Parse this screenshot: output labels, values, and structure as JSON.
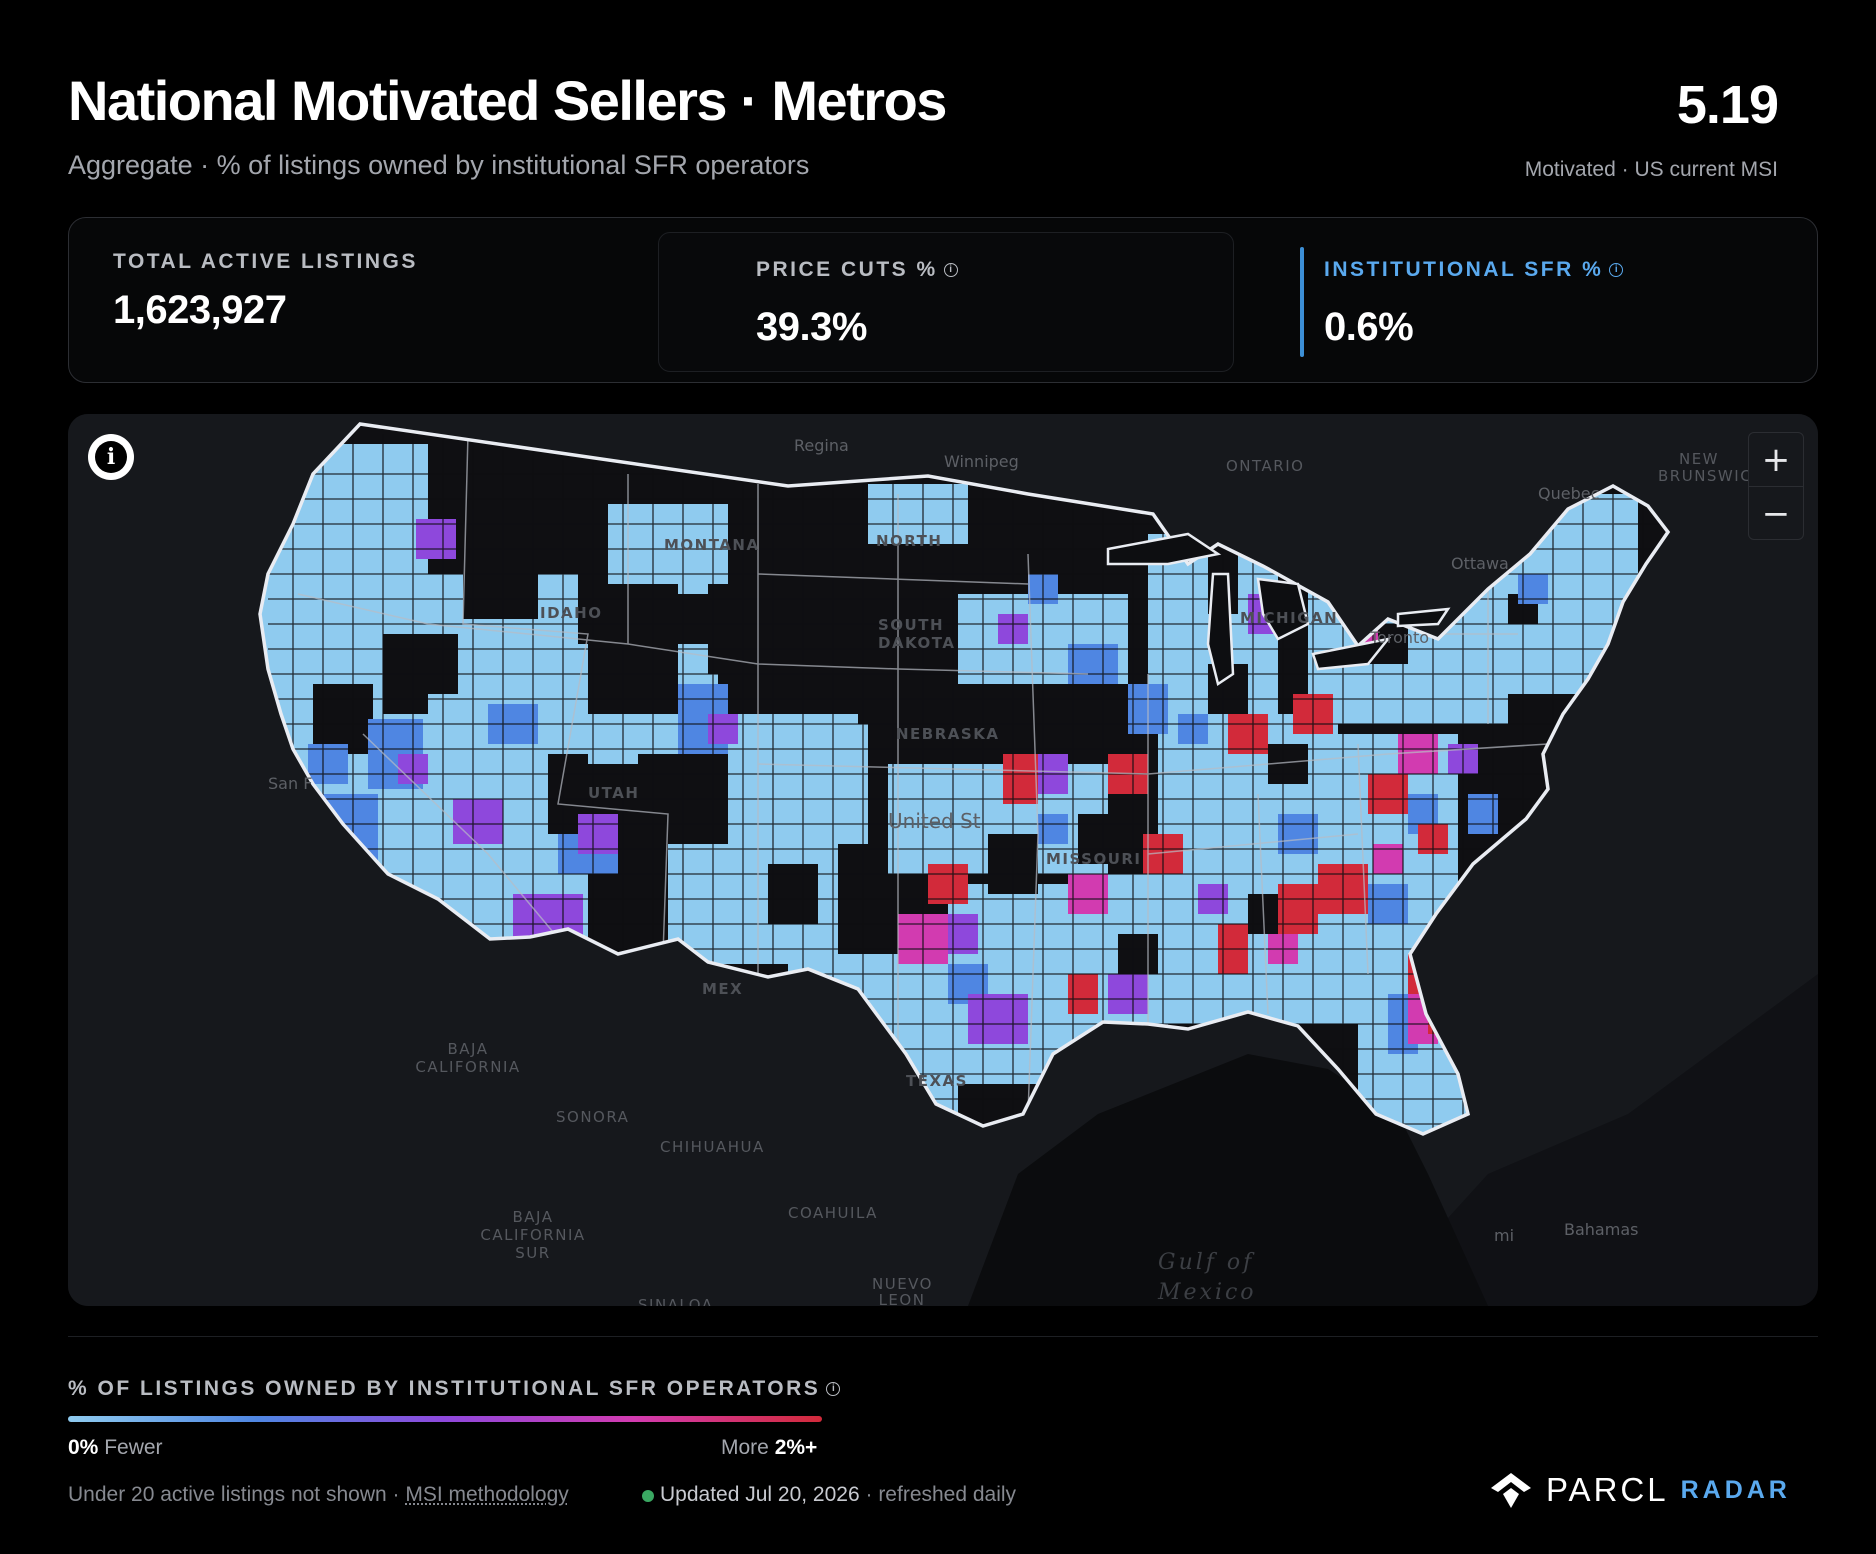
{
  "header": {
    "title": "National Motivated Sellers · Metros",
    "subtitle": "Aggregate · % of listings owned by institutional SFR operators",
    "msi_value": "5.19",
    "msi_label": "Motivated · US current MSI"
  },
  "stats": [
    {
      "label": "TOTAL ACTIVE LISTINGS",
      "value": "1,623,927"
    },
    {
      "label": "PRICE CUTS %",
      "value": "39.3%",
      "info_icon": "info-icon"
    },
    {
      "label": "INSTITUTIONAL SFR %",
      "value": "0.6%",
      "info_icon": "info-icon",
      "active": true
    }
  ],
  "map": {
    "info_icon": "info-icon",
    "zoom_in": "+",
    "zoom_out": "−",
    "regions": [
      {
        "label": "Regina"
      },
      {
        "label": "Winnipeg"
      },
      {
        "label": "ONTARIO"
      },
      {
        "label": "NEW BRUNSWICK"
      },
      {
        "label": "Quebec"
      },
      {
        "label": "Ottawa"
      },
      {
        "label": "Toronto"
      },
      {
        "label": "MONTANA"
      },
      {
        "label": "NORTH"
      },
      {
        "label": "SOUTH DAKOTA"
      },
      {
        "label": "IDAHO"
      },
      {
        "label": "NEBRASKA"
      },
      {
        "label": "UTAH"
      },
      {
        "label": "United St"
      },
      {
        "label": "MISSOURI"
      },
      {
        "label": "MICHIGAN"
      },
      {
        "label": "San F"
      },
      {
        "label": "MEX"
      },
      {
        "label": "TEXAS"
      },
      {
        "label": "BAJA CALIFORNIA"
      },
      {
        "label": "SONORA"
      },
      {
        "label": "CHIHUAHUA"
      },
      {
        "label": "BAJA CALIFORNIA SUR"
      },
      {
        "label": "COAHUILA"
      },
      {
        "label": "NUEVO LEON"
      },
      {
        "label": "SINALOA"
      },
      {
        "label": "Gulf of Mexico"
      },
      {
        "label": "Bahamas"
      },
      {
        "label": "mi"
      }
    ],
    "colors": {
      "background": "#0d0e11",
      "land": "#1a1c20",
      "us_fill": "#0f0f12",
      "border": "#e9ecf2",
      "low": "#8fcbef",
      "mid_low": "#4f86e2",
      "mid": "#8e48dc",
      "mid_high": "#d23bb0",
      "high": "#d22a3a"
    }
  },
  "legend": {
    "title": "% OF LISTINGS OWNED BY INSTITUTIONAL SFR OPERATORS",
    "info_icon": "info-icon",
    "low_value": "0%",
    "low_text": "Fewer",
    "high_text": "More",
    "high_value": "2%+",
    "gradient": [
      "#8fcbef",
      "#4f86e2",
      "#8e48dc",
      "#d23bb0",
      "#d22a3a"
    ]
  },
  "footer": {
    "note": "Under 20 active listings not shown · ",
    "methodology_link": "MSI methodology",
    "status_dot": "green-dot",
    "updated": "Updated Jul 20, 2026",
    "refresh": " · refreshed daily",
    "brand_name": "PARCL",
    "brand_product": "RADAR",
    "brand_icon": "parcl-logo-icon"
  }
}
